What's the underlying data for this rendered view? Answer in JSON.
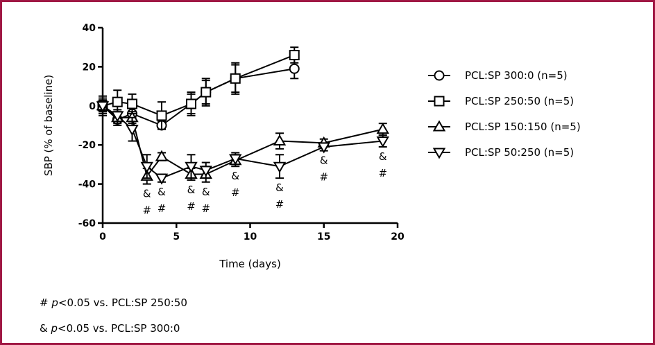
{
  "chart_data": {
    "type": "line",
    "title": "",
    "xlabel": "Time (days)",
    "ylabel": "SBP (% of baseline)",
    "xlim": [
      0,
      20
    ],
    "ylim": [
      -60,
      40
    ],
    "x_ticks": [
      0,
      5,
      10,
      15,
      20
    ],
    "y_ticks": [
      40,
      20,
      0,
      -20,
      -40,
      -60
    ],
    "grid": false,
    "legend_position": "right",
    "series": [
      {
        "name": "PCL:SP 300:0 (n=5)",
        "marker": "circle",
        "x": [
          0,
          1,
          2,
          4,
          6,
          7,
          9,
          13
        ],
        "y": [
          0,
          -7,
          -4,
          -10,
          1,
          7,
          14,
          19
        ],
        "err": [
          4,
          3,
          4,
          2,
          5,
          6,
          7,
          5
        ]
      },
      {
        "name": "PCL:SP 250:50 (n=5)",
        "marker": "square",
        "x": [
          0,
          1,
          2,
          4,
          6,
          7,
          9,
          13
        ],
        "y": [
          0,
          2,
          1,
          -5,
          1,
          7,
          14,
          26
        ],
        "err": [
          5,
          6,
          5,
          7,
          6,
          7,
          8,
          4
        ]
      },
      {
        "name": "PCL:SP 150:150 (n=5)",
        "marker": "triangle-up",
        "x": [
          0,
          1,
          2,
          3,
          4,
          6,
          7,
          9,
          12,
          15,
          19
        ],
        "y": [
          0,
          -6,
          -6,
          -36,
          -26,
          -35,
          -35,
          -28,
          -18,
          -19,
          -12
        ],
        "err": [
          3,
          3,
          3,
          4,
          2,
          3,
          4,
          3,
          4,
          2,
          3
        ]
      },
      {
        "name": "PCL:SP 50:250 (n=5)",
        "marker": "triangle-down",
        "x": [
          0,
          1,
          2,
          3,
          4,
          6,
          7,
          9,
          12,
          15,
          19
        ],
        "y": [
          0,
          -5,
          -12,
          -31,
          -37,
          -31,
          -33,
          -27,
          -31,
          -21,
          -18
        ],
        "err": [
          3,
          3,
          6,
          6,
          2,
          6,
          4,
          3,
          6,
          2,
          3
        ]
      }
    ],
    "annotations": [
      {
        "x": 3,
        "text": "&"
      },
      {
        "x": 3,
        "text": "#"
      },
      {
        "x": 4,
        "text": "&"
      },
      {
        "x": 4,
        "text": "#"
      },
      {
        "x": 6,
        "text": "&"
      },
      {
        "x": 6,
        "text": "#"
      },
      {
        "x": 7,
        "text": "&"
      },
      {
        "x": 7,
        "text": "#"
      },
      {
        "x": 9,
        "text": "&"
      },
      {
        "x": 9,
        "text": "#"
      },
      {
        "x": 12,
        "text": "&"
      },
      {
        "x": 12,
        "text": "#"
      },
      {
        "x": 15,
        "text": "&"
      },
      {
        "x": 15,
        "text": "#"
      },
      {
        "x": 19,
        "text": "&"
      },
      {
        "x": 19,
        "text": "#"
      }
    ]
  },
  "footnotes": {
    "hash_symbol": "#",
    "hash_p": "p",
    "hash_text": "<0.05 vs. PCL:SP 250:50",
    "amp_symbol": "&",
    "amp_p": "p",
    "amp_text": "<0.05 vs. PCL:SP 300:0"
  }
}
